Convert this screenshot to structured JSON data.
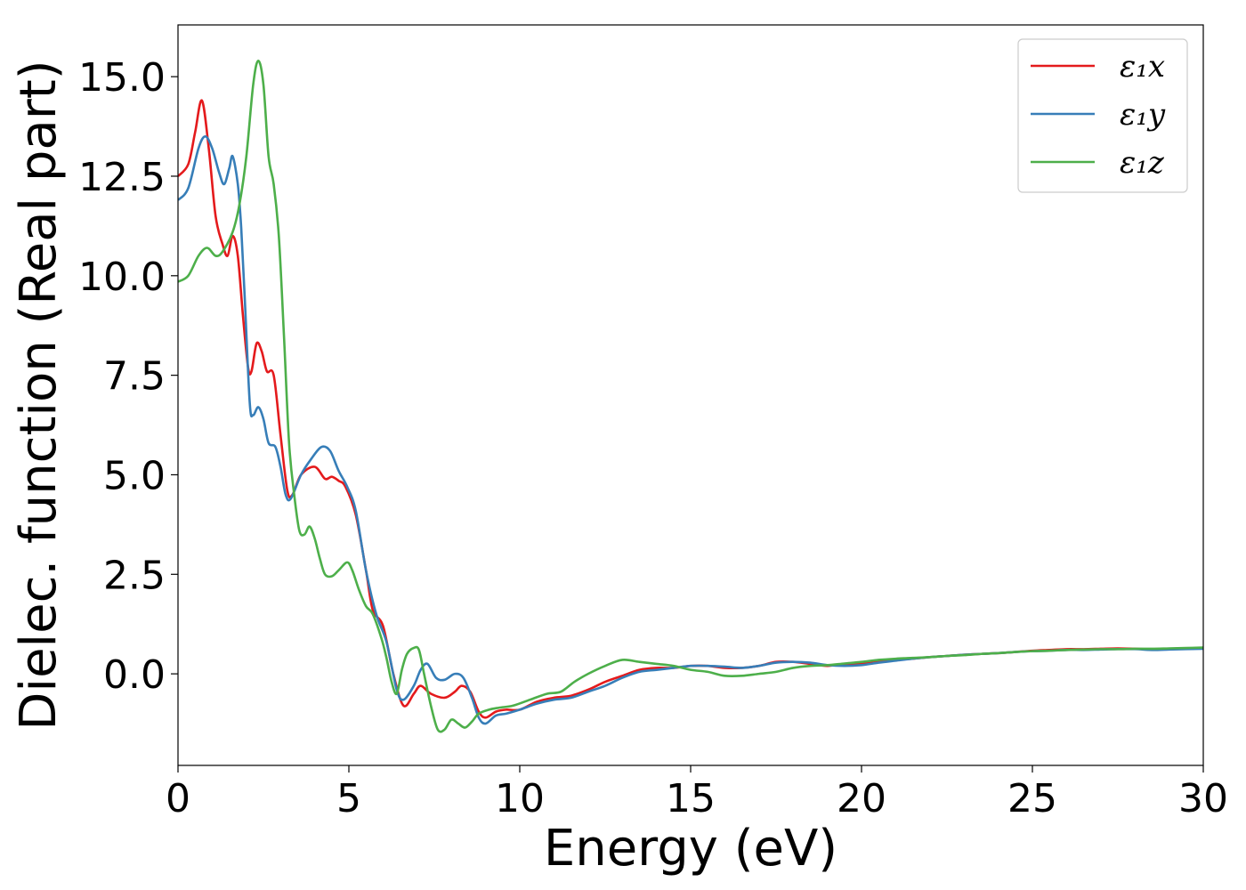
{
  "chart_data": {
    "type": "line",
    "xlabel": "Energy (eV)",
    "ylabel": "Dielec. function (Real part)",
    "xlim": [
      0,
      30
    ],
    "ylim": [
      -2.3,
      16.3
    ],
    "xticks": [
      0,
      5,
      10,
      15,
      20,
      25,
      30
    ],
    "xtick_labels": [
      "0",
      "5",
      "10",
      "15",
      "20",
      "25",
      "30"
    ],
    "yticks": [
      0.0,
      2.5,
      5.0,
      7.5,
      10.0,
      12.5,
      15.0
    ],
    "ytick_labels": [
      "0.0",
      "2.5",
      "5.0",
      "7.5",
      "10.0",
      "12.5",
      "15.0"
    ],
    "grid": false,
    "legend_position": "top-right",
    "series": [
      {
        "name": "ε₁x",
        "color": "#e41a1c",
        "points": [
          [
            0,
            12.5
          ],
          [
            0.3,
            12.8
          ],
          [
            0.5,
            13.6
          ],
          [
            0.7,
            14.4
          ],
          [
            0.9,
            13.2
          ],
          [
            1.1,
            11.5
          ],
          [
            1.3,
            10.8
          ],
          [
            1.45,
            10.5
          ],
          [
            1.6,
            11.0
          ],
          [
            1.75,
            10.5
          ],
          [
            1.9,
            9.0
          ],
          [
            2.05,
            7.7
          ],
          [
            2.15,
            7.6
          ],
          [
            2.3,
            8.3
          ],
          [
            2.45,
            8.1
          ],
          [
            2.6,
            7.6
          ],
          [
            2.8,
            7.5
          ],
          [
            3.0,
            6.0
          ],
          [
            3.2,
            4.6
          ],
          [
            3.35,
            4.5
          ],
          [
            3.6,
            5.0
          ],
          [
            4.0,
            5.2
          ],
          [
            4.3,
            4.9
          ],
          [
            4.5,
            4.95
          ],
          [
            4.7,
            4.85
          ],
          [
            4.9,
            4.7
          ],
          [
            5.2,
            4.0
          ],
          [
            5.5,
            2.6
          ],
          [
            5.7,
            1.6
          ],
          [
            6.0,
            1.2
          ],
          [
            6.3,
            0.0
          ],
          [
            6.6,
            -0.8
          ],
          [
            6.9,
            -0.5
          ],
          [
            7.1,
            -0.3
          ],
          [
            7.4,
            -0.5
          ],
          [
            7.8,
            -0.6
          ],
          [
            8.1,
            -0.45
          ],
          [
            8.3,
            -0.3
          ],
          [
            8.55,
            -0.45
          ],
          [
            8.8,
            -0.95
          ],
          [
            9.0,
            -1.1
          ],
          [
            9.3,
            -0.95
          ],
          [
            9.6,
            -0.9
          ],
          [
            10.0,
            -0.9
          ],
          [
            10.5,
            -0.7
          ],
          [
            11.0,
            -0.6
          ],
          [
            11.5,
            -0.55
          ],
          [
            12.0,
            -0.4
          ],
          [
            12.5,
            -0.2
          ],
          [
            13.0,
            -0.05
          ],
          [
            13.5,
            0.1
          ],
          [
            14.0,
            0.15
          ],
          [
            14.5,
            0.15
          ],
          [
            15.0,
            0.2
          ],
          [
            15.5,
            0.2
          ],
          [
            16.0,
            0.15
          ],
          [
            16.5,
            0.15
          ],
          [
            17.0,
            0.2
          ],
          [
            17.5,
            0.3
          ],
          [
            18.0,
            0.3
          ],
          [
            18.5,
            0.25
          ],
          [
            19.0,
            0.2
          ],
          [
            19.5,
            0.25
          ],
          [
            20.0,
            0.25
          ],
          [
            20.5,
            0.3
          ],
          [
            21.0,
            0.35
          ],
          [
            21.5,
            0.38
          ],
          [
            22.0,
            0.42
          ],
          [
            22.5,
            0.45
          ],
          [
            23.0,
            0.48
          ],
          [
            23.5,
            0.5
          ],
          [
            24.0,
            0.52
          ],
          [
            24.5,
            0.55
          ],
          [
            25.0,
            0.58
          ],
          [
            25.5,
            0.6
          ],
          [
            26.0,
            0.62
          ],
          [
            26.5,
            0.62
          ],
          [
            27.0,
            0.63
          ],
          [
            27.5,
            0.64
          ],
          [
            28.0,
            0.63
          ],
          [
            28.5,
            0.62
          ],
          [
            29.0,
            0.63
          ],
          [
            29.5,
            0.64
          ],
          [
            30.0,
            0.65
          ]
        ]
      },
      {
        "name": "ε₁y",
        "color": "#377eb8",
        "points": [
          [
            0,
            11.9
          ],
          [
            0.3,
            12.2
          ],
          [
            0.6,
            13.2
          ],
          [
            0.8,
            13.5
          ],
          [
            1.0,
            13.2
          ],
          [
            1.2,
            12.6
          ],
          [
            1.35,
            12.3
          ],
          [
            1.5,
            12.7
          ],
          [
            1.6,
            13.0
          ],
          [
            1.75,
            12.3
          ],
          [
            1.85,
            11.2
          ],
          [
            1.95,
            9.5
          ],
          [
            2.1,
            6.8
          ],
          [
            2.2,
            6.5
          ],
          [
            2.35,
            6.7
          ],
          [
            2.5,
            6.4
          ],
          [
            2.65,
            5.8
          ],
          [
            2.85,
            5.7
          ],
          [
            3.0,
            5.2
          ],
          [
            3.15,
            4.5
          ],
          [
            3.3,
            4.4
          ],
          [
            3.6,
            5.0
          ],
          [
            3.9,
            5.4
          ],
          [
            4.2,
            5.7
          ],
          [
            4.45,
            5.6
          ],
          [
            4.7,
            5.1
          ],
          [
            4.95,
            4.7
          ],
          [
            5.2,
            4.1
          ],
          [
            5.5,
            2.6
          ],
          [
            5.8,
            1.5
          ],
          [
            6.1,
            0.8
          ],
          [
            6.4,
            -0.4
          ],
          [
            6.6,
            -0.65
          ],
          [
            6.9,
            -0.3
          ],
          [
            7.1,
            0.1
          ],
          [
            7.3,
            0.25
          ],
          [
            7.55,
            -0.1
          ],
          [
            7.8,
            -0.15
          ],
          [
            8.1,
            0.0
          ],
          [
            8.35,
            -0.1
          ],
          [
            8.6,
            -0.6
          ],
          [
            8.8,
            -1.1
          ],
          [
            9.0,
            -1.25
          ],
          [
            9.3,
            -1.05
          ],
          [
            9.6,
            -1.0
          ],
          [
            10.0,
            -0.9
          ],
          [
            10.5,
            -0.75
          ],
          [
            11.0,
            -0.65
          ],
          [
            11.5,
            -0.6
          ],
          [
            12.0,
            -0.45
          ],
          [
            12.5,
            -0.3
          ],
          [
            13.0,
            -0.1
          ],
          [
            13.5,
            0.05
          ],
          [
            14.0,
            0.1
          ],
          [
            14.5,
            0.15
          ],
          [
            15.0,
            0.2
          ],
          [
            15.5,
            0.2
          ],
          [
            16.0,
            0.18
          ],
          [
            16.5,
            0.15
          ],
          [
            17.0,
            0.2
          ],
          [
            17.5,
            0.28
          ],
          [
            18.0,
            0.3
          ],
          [
            18.5,
            0.28
          ],
          [
            19.0,
            0.22
          ],
          [
            19.5,
            0.2
          ],
          [
            20.0,
            0.22
          ],
          [
            20.5,
            0.28
          ],
          [
            21.0,
            0.33
          ],
          [
            21.5,
            0.38
          ],
          [
            22.0,
            0.42
          ],
          [
            22.5,
            0.45
          ],
          [
            23.0,
            0.48
          ],
          [
            23.5,
            0.5
          ],
          [
            24.0,
            0.52
          ],
          [
            24.5,
            0.55
          ],
          [
            25.0,
            0.57
          ],
          [
            25.5,
            0.58
          ],
          [
            26.0,
            0.6
          ],
          [
            26.5,
            0.6
          ],
          [
            27.0,
            0.61
          ],
          [
            27.5,
            0.62
          ],
          [
            28.0,
            0.62
          ],
          [
            28.5,
            0.6
          ],
          [
            29.0,
            0.61
          ],
          [
            29.5,
            0.62
          ],
          [
            30.0,
            0.63
          ]
        ]
      },
      {
        "name": "ε₁z",
        "color": "#4daf4a",
        "points": [
          [
            0,
            9.85
          ],
          [
            0.3,
            10.0
          ],
          [
            0.6,
            10.5
          ],
          [
            0.85,
            10.7
          ],
          [
            1.1,
            10.5
          ],
          [
            1.3,
            10.6
          ],
          [
            1.6,
            11.1
          ],
          [
            1.8,
            11.8
          ],
          [
            2.0,
            13.0
          ],
          [
            2.2,
            14.8
          ],
          [
            2.35,
            15.4
          ],
          [
            2.5,
            14.8
          ],
          [
            2.65,
            13.0
          ],
          [
            2.8,
            12.3
          ],
          [
            2.95,
            11.0
          ],
          [
            3.1,
            8.5
          ],
          [
            3.25,
            5.8
          ],
          [
            3.4,
            4.5
          ],
          [
            3.55,
            3.6
          ],
          [
            3.7,
            3.5
          ],
          [
            3.85,
            3.7
          ],
          [
            4.0,
            3.4
          ],
          [
            4.15,
            2.9
          ],
          [
            4.3,
            2.5
          ],
          [
            4.5,
            2.45
          ],
          [
            4.7,
            2.6
          ],
          [
            4.95,
            2.8
          ],
          [
            5.1,
            2.6
          ],
          [
            5.3,
            2.1
          ],
          [
            5.5,
            1.7
          ],
          [
            5.7,
            1.5
          ],
          [
            5.95,
            0.9
          ],
          [
            6.1,
            0.4
          ],
          [
            6.25,
            -0.2
          ],
          [
            6.4,
            -0.5
          ],
          [
            6.55,
            0.1
          ],
          [
            6.7,
            0.5
          ],
          [
            6.9,
            0.65
          ],
          [
            7.05,
            0.6
          ],
          [
            7.2,
            0.0
          ],
          [
            7.4,
            -0.8
          ],
          [
            7.6,
            -1.4
          ],
          [
            7.8,
            -1.4
          ],
          [
            8.0,
            -1.15
          ],
          [
            8.2,
            -1.25
          ],
          [
            8.4,
            -1.35
          ],
          [
            8.6,
            -1.2
          ],
          [
            8.8,
            -1.0
          ],
          [
            9.1,
            -0.9
          ],
          [
            9.4,
            -0.85
          ],
          [
            9.8,
            -0.8
          ],
          [
            10.3,
            -0.65
          ],
          [
            10.8,
            -0.5
          ],
          [
            11.2,
            -0.45
          ],
          [
            11.6,
            -0.2
          ],
          [
            12.0,
            0.0
          ],
          [
            12.5,
            0.2
          ],
          [
            13.0,
            0.35
          ],
          [
            13.5,
            0.3
          ],
          [
            14.0,
            0.25
          ],
          [
            14.5,
            0.2
          ],
          [
            15.0,
            0.1
          ],
          [
            15.5,
            0.05
          ],
          [
            16.0,
            -0.05
          ],
          [
            16.5,
            -0.05
          ],
          [
            17.0,
            0.0
          ],
          [
            17.5,
            0.05
          ],
          [
            18.0,
            0.15
          ],
          [
            18.5,
            0.2
          ],
          [
            19.0,
            0.22
          ],
          [
            19.5,
            0.26
          ],
          [
            20.0,
            0.3
          ],
          [
            20.5,
            0.35
          ],
          [
            21.0,
            0.38
          ],
          [
            21.5,
            0.4
          ],
          [
            22.0,
            0.42
          ],
          [
            22.5,
            0.45
          ],
          [
            23.0,
            0.47
          ],
          [
            23.5,
            0.5
          ],
          [
            24.0,
            0.52
          ],
          [
            24.5,
            0.55
          ],
          [
            25.0,
            0.57
          ],
          [
            25.5,
            0.58
          ],
          [
            26.0,
            0.6
          ],
          [
            26.5,
            0.61
          ],
          [
            27.0,
            0.62
          ],
          [
            27.5,
            0.62
          ],
          [
            28.0,
            0.63
          ],
          [
            28.5,
            0.63
          ],
          [
            29.0,
            0.64
          ],
          [
            29.5,
            0.65
          ],
          [
            30.0,
            0.66
          ]
        ]
      }
    ]
  }
}
